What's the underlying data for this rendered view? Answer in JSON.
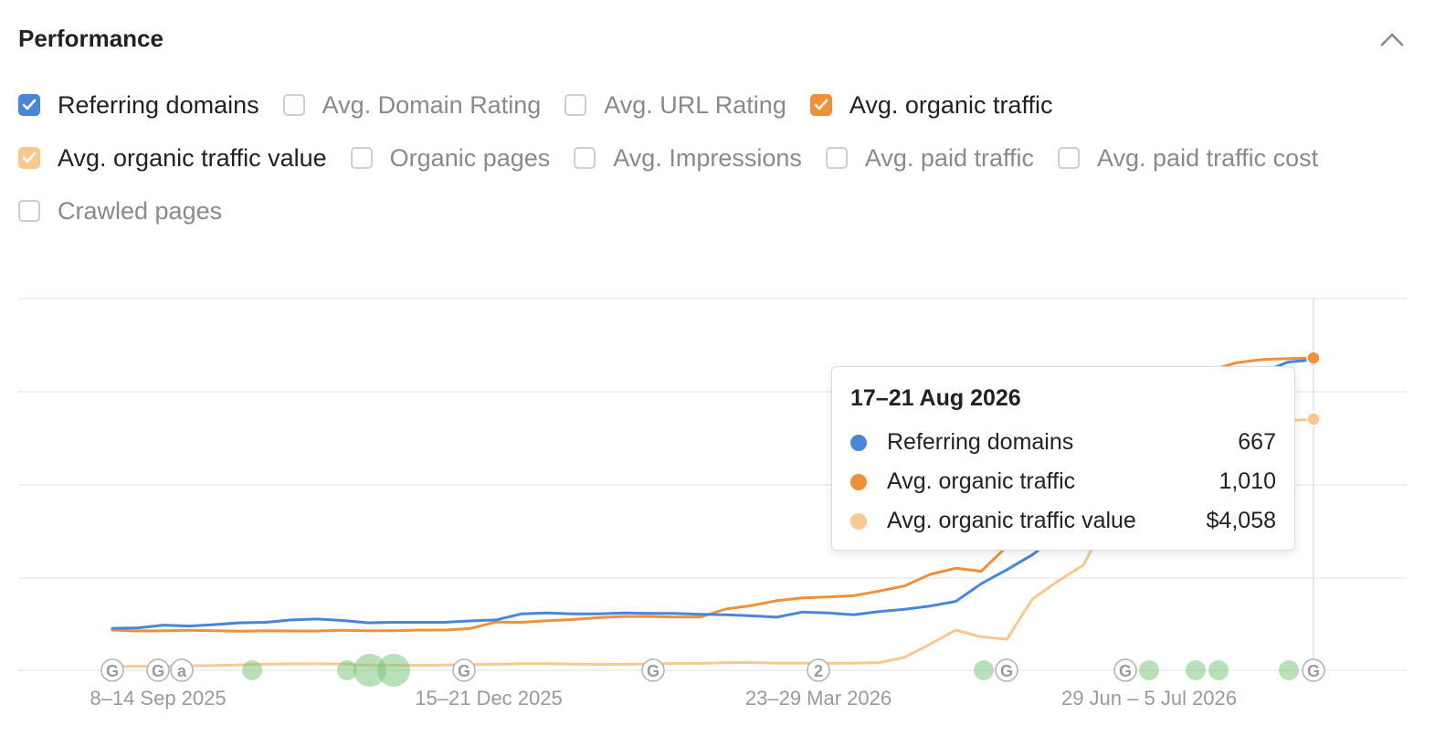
{
  "panel": {
    "title": "Performance",
    "collapse_icon": "chevron-up-icon"
  },
  "options": [
    {
      "label": "Referring domains",
      "checked": true,
      "color": "#4a86d8"
    },
    {
      "label": "Avg. Domain Rating",
      "checked": false
    },
    {
      "label": "Avg. URL Rating",
      "checked": false
    },
    {
      "label": "Avg. organic traffic",
      "checked": true,
      "color": "#f0913a"
    },
    {
      "label": "Avg. organic traffic value",
      "checked": true,
      "color": "#f8c88f"
    },
    {
      "label": "Organic pages",
      "checked": false
    },
    {
      "label": "Avg. Impressions",
      "checked": false
    },
    {
      "label": "Avg. paid traffic",
      "checked": false
    },
    {
      "label": "Avg. paid traffic cost",
      "checked": false
    },
    {
      "label": "Crawled pages",
      "checked": false
    }
  ],
  "tooltip": {
    "title": "17–21 Aug 2026",
    "rows": [
      {
        "name": "Referring domains",
        "value": "667",
        "color": "#4a86d8"
      },
      {
        "name": "Avg. organic traffic",
        "value": "1,010",
        "color": "#f0913a"
      },
      {
        "name": "Avg. organic traffic value",
        "value": "$4,058",
        "color": "#f8c88f"
      }
    ]
  },
  "chart_data": {
    "type": "line",
    "x_tick_labels": [
      "8–14 Sep 2025",
      "15–21 Dec 2025",
      "23–29 Mar 2026",
      "29 Jun – 5 Jul 2026"
    ],
    "grid": true,
    "selected_point_label": "17–21 Aug 2026",
    "series": [
      {
        "name": "Referring domains",
        "color": "#4a86d8",
        "values": [
          90,
          91,
          97,
          95,
          98,
          102,
          103,
          108,
          110,
          107,
          102,
          103,
          103,
          103,
          106,
          108,
          121,
          123,
          121,
          121,
          123,
          122,
          122,
          120,
          119,
          117,
          114,
          125,
          123,
          119,
          126,
          131,
          138,
          148,
          186,
          216,
          248,
          290,
          330,
          355,
          390,
          445,
          500,
          555,
          610,
          640,
          662,
          667
        ]
      },
      {
        "name": "Avg. organic traffic",
        "color": "#f0913a",
        "values": [
          130,
          127,
          128,
          129,
          128,
          126,
          128,
          127,
          127,
          129,
          128,
          128,
          130,
          130,
          135,
          156,
          155,
          160,
          164,
          170,
          174,
          174,
          172,
          172,
          198,
          209,
          225,
          234,
          237,
          241,
          256,
          273,
          310,
          330,
          320,
          400,
          470,
          560,
          650,
          740,
          820,
          880,
          930,
          970,
          995,
          1005,
          1008,
          1010
        ]
      },
      {
        "name": "Avg. organic traffic value",
        "color": "#f8c88f",
        "values": [
          60,
          63,
          65,
          69,
          76,
          87,
          98,
          103,
          105,
          99,
          82,
          81,
          79,
          85,
          90,
          96,
          106,
          108,
          101,
          95,
          96,
          102,
          109,
          110,
          124,
          126,
          113,
          115,
          112,
          114,
          124,
          210,
          420,
          650,
          540,
          500,
          1150,
          1440,
          1700,
          2500,
          2900,
          3200,
          3500,
          3750,
          3900,
          3980,
          4030,
          4058
        ]
      }
    ],
    "annotations": [
      {
        "type": "update",
        "label": "G"
      },
      {
        "type": "update",
        "label": "G"
      },
      {
        "type": "update",
        "label": "a"
      },
      {
        "type": "update",
        "label": "G"
      },
      {
        "type": "update",
        "label": "G"
      },
      {
        "type": "update",
        "label": "2"
      },
      {
        "type": "update",
        "label": "G"
      },
      {
        "type": "update",
        "label": "G"
      },
      {
        "type": "update",
        "label": "G"
      }
    ]
  }
}
